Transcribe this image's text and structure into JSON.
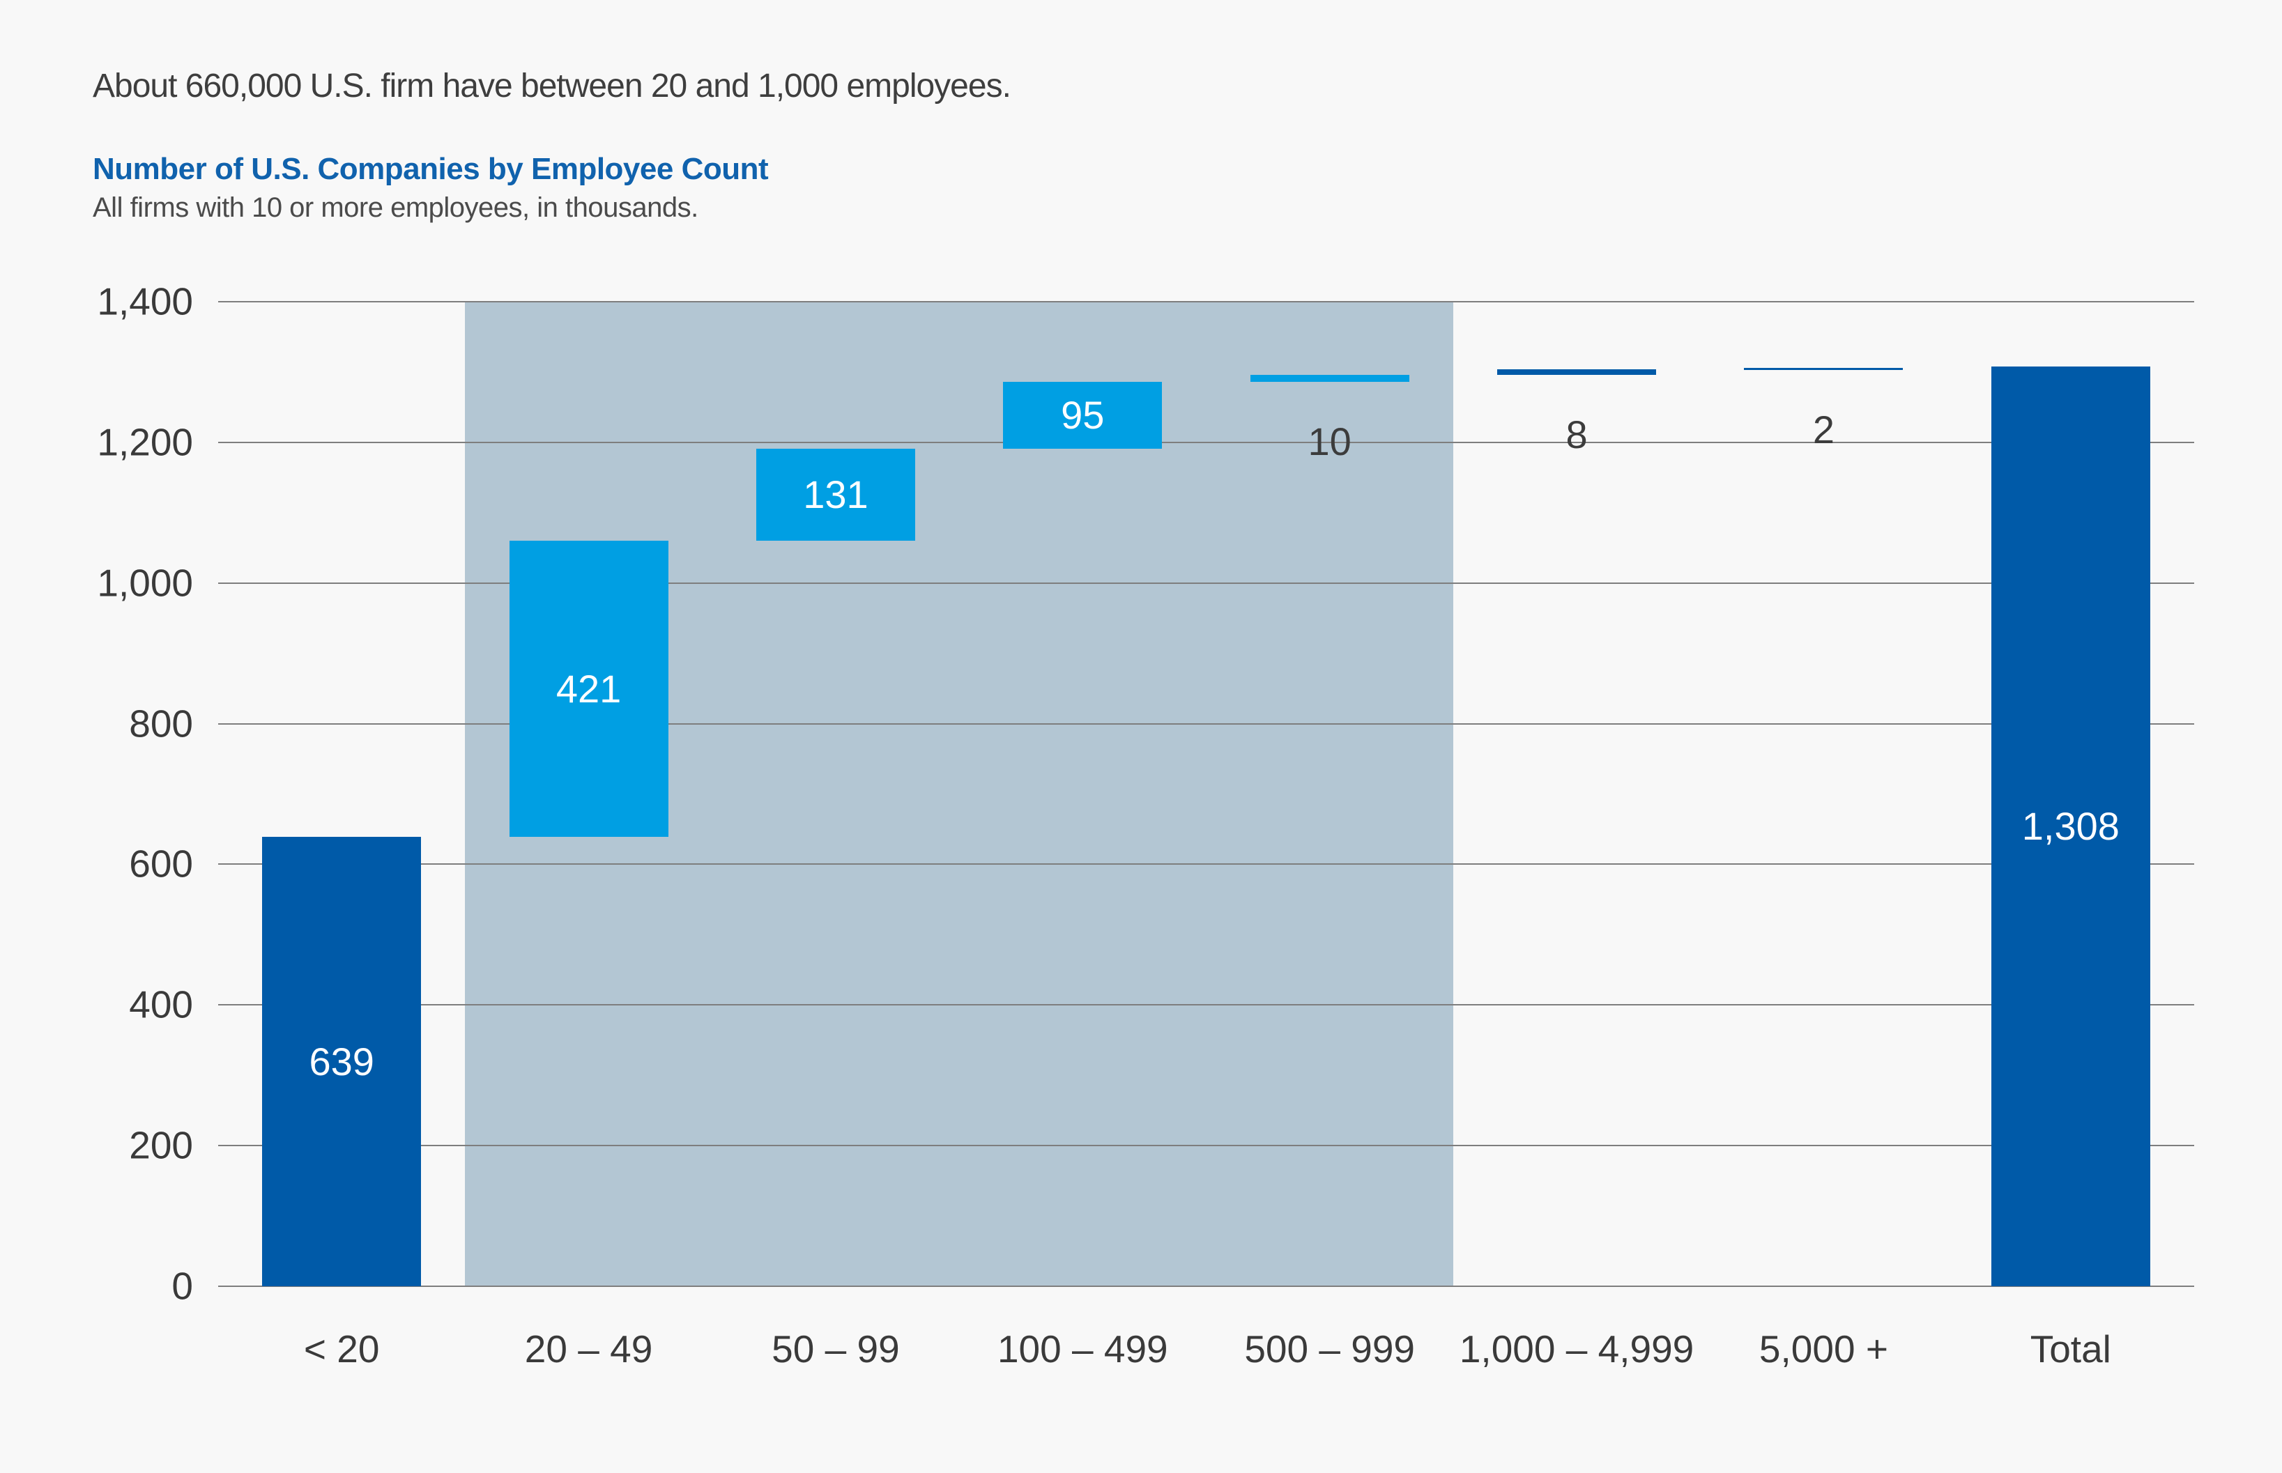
{
  "header": {
    "headline": "About 660,000 U.S. firm have between 20 and 1,000 employees.",
    "title": "Number of U.S. Companies by Employee Count",
    "subtitle": "All firms with 10 or more employees, in thousands."
  },
  "colors": {
    "background": "#F8F8F8",
    "dark_blue": "#005AA8",
    "cyan": "#009FE3",
    "band": "#B3C6D3",
    "gridline": "#7E7E7E",
    "axis_text": "#3A3A3A",
    "title_blue": "#1062AD",
    "headline_text": "#3E3E3E",
    "subtitle_text": "#4B4B4B",
    "bar_label_light": "#FFFFFF",
    "bar_label_dark": "#3C3C3C"
  },
  "chart_data": {
    "type": "bar",
    "subtype": "waterfall",
    "title": "Number of U.S. Companies by Employee Count",
    "subtitle": "All firms with 10 or more employees, in thousands.",
    "xlabel": "",
    "ylabel": "",
    "grid": "horizontal",
    "legend": "none",
    "categories": [
      "< 20",
      "20 – 49",
      "50 – 99",
      "100 – 499",
      "500 – 999",
      "1,000 – 4,999",
      "5,000 +",
      "Total"
    ],
    "values": [
      639,
      421,
      131,
      95,
      10,
      8,
      2,
      1308
    ],
    "labels": [
      "639",
      "421",
      "131",
      "95",
      "10",
      "8",
      "2",
      "1,308"
    ],
    "starts": [
      0,
      639,
      1060,
      1191,
      1286,
      1296,
      1304,
      0
    ],
    "ends": [
      639,
      1060,
      1191,
      1286,
      1296,
      1304,
      1306,
      1308
    ],
    "bar_colors": [
      "dark",
      "cyan",
      "cyan",
      "cyan",
      "cyan",
      "dark",
      "dark",
      "dark"
    ],
    "label_placement": [
      "inside",
      "inside",
      "inside",
      "inside",
      "below",
      "below",
      "below",
      "inside"
    ],
    "ylim": [
      0,
      1400
    ],
    "yticks": [
      {
        "value": 0,
        "label": "0"
      },
      {
        "value": 200,
        "label": "200"
      },
      {
        "value": 400,
        "label": "400"
      },
      {
        "value": 600,
        "label": "600"
      },
      {
        "value": 800,
        "label": "800"
      },
      {
        "value": 1000,
        "label": "1,000"
      },
      {
        "value": 1200,
        "label": "1,200"
      },
      {
        "value": 1400,
        "label": "1,400"
      }
    ],
    "highlight_band": {
      "from_category_index": 1,
      "to_category_index": 4
    }
  }
}
